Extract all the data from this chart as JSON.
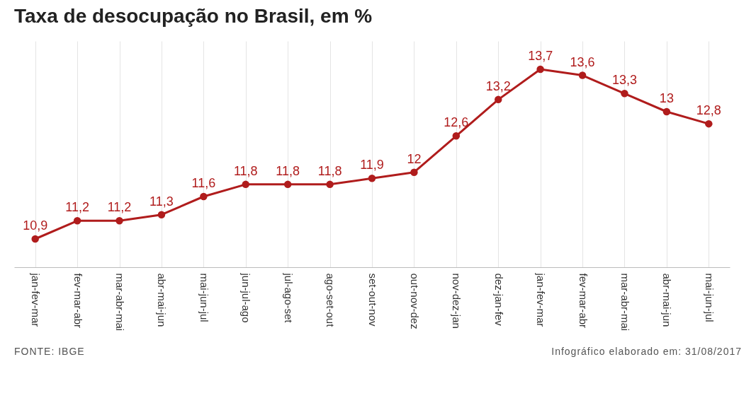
{
  "chart_data": {
    "type": "line",
    "title": "Taxa de desocupação no Brasil, em %",
    "categories": [
      "jan-fev-mar",
      "fev-mar-abr",
      "mar-abr-mai",
      "abr-mai-jun",
      "mai-jun-jul",
      "jun-jul-ago",
      "jul-ago-set",
      "ago-set-out",
      "set-out-nov",
      "out-nov-dez",
      "nov-dez-jan",
      "dez-jan-fev",
      "jan-fev-mar",
      "fev-mar-abr",
      "mar-abr-mai",
      "abr-mai-jun",
      "mai-jun-jul"
    ],
    "series": [
      {
        "color": "#b01c1c",
        "values": [
          10.9,
          11.2,
          11.2,
          11.3,
          11.6,
          11.8,
          11.8,
          11.8,
          11.9,
          12,
          12.6,
          13.2,
          13.7,
          13.6,
          13.3,
          13,
          12.8
        ],
        "value_labels": [
          "10,9",
          "11,2",
          "11,2",
          "11,3",
          "11,6",
          "11,8",
          "11,8",
          "11,8",
          "11,9",
          "12",
          "12,6",
          "13,2",
          "13,7",
          "13,6",
          "13,3",
          "13",
          "12,8"
        ]
      }
    ],
    "grid": "x",
    "tick_labels": "x",
    "marker": "circle",
    "line_style": "solid",
    "annotations": [
      "FONTE: IBGE",
      "Infográfico elaborado em: 31/08/2017"
    ]
  }
}
